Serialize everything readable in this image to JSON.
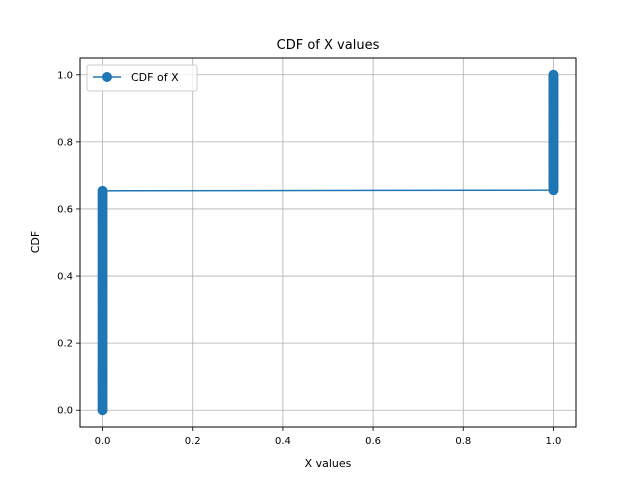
{
  "chart_data": {
    "type": "line",
    "title": "CDF of X values",
    "xlabel": "X values",
    "ylabel": "CDF",
    "xlim": [
      -0.05,
      1.05
    ],
    "ylim": [
      -0.05,
      1.05
    ],
    "xticks": [
      0.0,
      0.2,
      0.4,
      0.6,
      0.8,
      1.0
    ],
    "yticks": [
      0.0,
      0.2,
      0.4,
      0.6,
      0.8,
      1.0
    ],
    "xtick_labels": [
      "0.0",
      "0.2",
      "0.4",
      "0.6",
      "0.8",
      "1.0"
    ],
    "ytick_labels": [
      "0.0",
      "0.2",
      "0.4",
      "0.6",
      "0.8",
      "1.0"
    ],
    "grid": true,
    "legend_position": "top-left",
    "series": [
      {
        "name": "CDF of X",
        "color": "#1f77b4",
        "marker": "circle",
        "segments": [
          {
            "x": 0.0,
            "y_from": 0.0,
            "y_to": 0.654
          },
          {
            "x": 1.0,
            "y_from": 0.656,
            "y_to": 1.0
          }
        ]
      }
    ]
  }
}
